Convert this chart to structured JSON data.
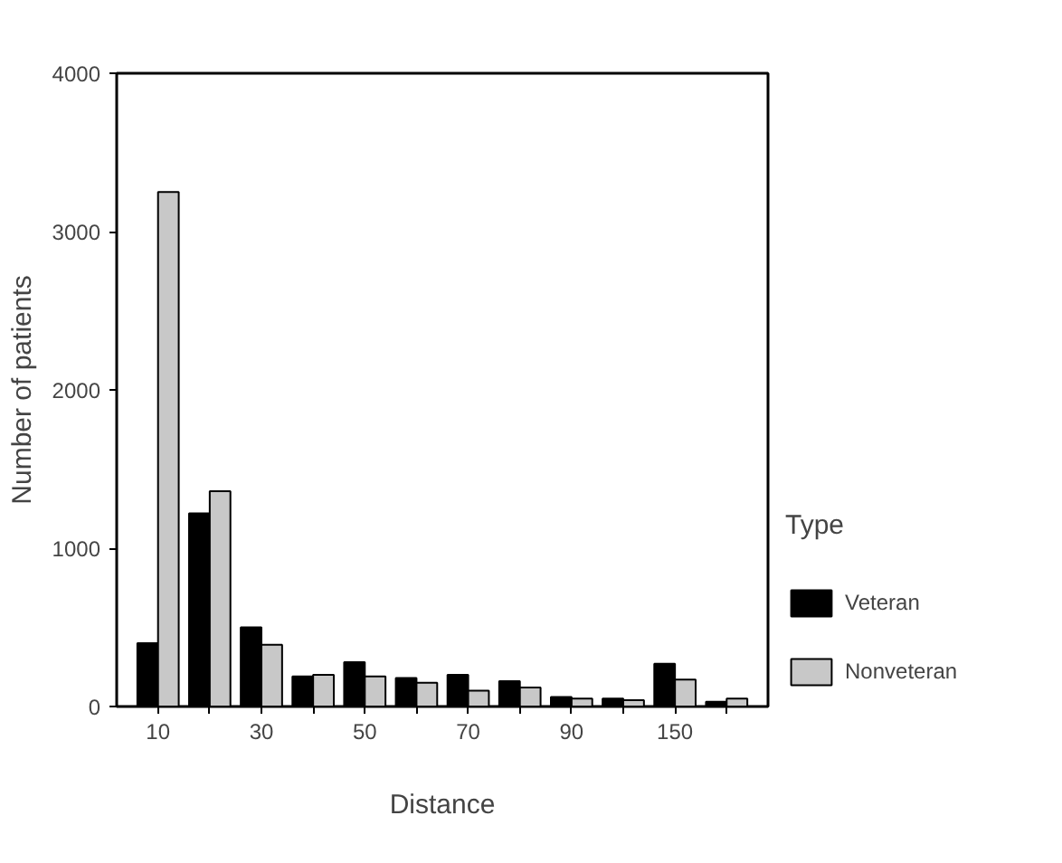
{
  "chart_data": {
    "type": "bar",
    "xlabel": "Distance",
    "ylabel": "Number of patients",
    "legend_title": "Type",
    "categories": [
      "10",
      null,
      "30",
      null,
      "50",
      null,
      "70",
      null,
      "90",
      null,
      "150",
      null
    ],
    "series": [
      {
        "name": "Veteran",
        "color": "#000000",
        "values": [
          400,
          1220,
          500,
          190,
          280,
          180,
          200,
          160,
          60,
          50,
          270,
          30
        ]
      },
      {
        "name": "Nonveteran",
        "color": "#c8c8c8",
        "values": [
          3250,
          1360,
          390,
          200,
          190,
          150,
          100,
          120,
          50,
          40,
          170,
          50
        ]
      }
    ],
    "ylim": [
      0,
      4000
    ],
    "yticks": [
      0,
      1000,
      2000,
      3000,
      4000
    ],
    "grid": false,
    "legend": "right"
  }
}
